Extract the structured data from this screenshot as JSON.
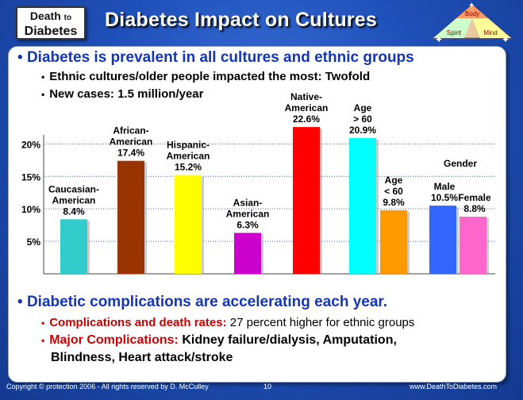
{
  "logo": {
    "line1a": "Death",
    "line1b": "to",
    "line2": "Diabetes"
  },
  "title": "Diabetes Impact on Cultures",
  "emblem": {
    "top": "Body",
    "left": "Spirit",
    "right": "Mind"
  },
  "bullet1": "Diabetes is prevalent in all cultures and ethnic groups",
  "sub1": "Ethnic cultures/older people impacted the most: Twofold",
  "sub2": "New cases: 1.5 million/year",
  "bullet2": "Diabetic complications are accelerating each year.",
  "comp1_red": "Complications and death rates:",
  "comp1_rest": " 27 percent higher for ethnic groups",
  "comp2_red": "Major Complications:",
  "comp2_rest": " Kidney failure/dialysis, Amputation,",
  "comp2_line2": "Blindness, Heart attack/stroke",
  "footer": {
    "left": "Copyright © protection 2006 - All rights reserved by D. McCulley",
    "page": "10",
    "right": "www.DeathToDiabetes.com"
  },
  "chart_data": {
    "type": "bar",
    "ylim": [
      0,
      20.9
    ],
    "yticks": [
      "20%",
      "15%",
      "10%",
      "5%"
    ],
    "ytick_values": [
      20,
      15,
      10,
      5
    ],
    "gender_label": "Gender",
    "bars": [
      {
        "label": [
          "Caucasian-",
          "American"
        ],
        "value_label": "8.4%",
        "value": 8.4,
        "color": "#33cccc"
      },
      {
        "label": [
          "African-",
          "American"
        ],
        "value_label": "17.4%",
        "value": 17.4,
        "color": "#993300"
      },
      {
        "label": [
          "Hispanic-",
          "American"
        ],
        "value_label": "15.2%",
        "value": 15.2,
        "color": "#ffff00"
      },
      {
        "label": [
          "Asian-",
          "American"
        ],
        "value_label": "6.3%",
        "value": 6.3,
        "color": "#cc00cc"
      },
      {
        "label": [
          "Native-",
          "American"
        ],
        "value_label": "22.6%",
        "value": 22.6,
        "color": "#ff0000"
      },
      {
        "label": [
          "Age",
          "> 60"
        ],
        "value_label": "20.9%",
        "value": 20.9,
        "color": "#00ffff"
      },
      {
        "label": [
          "Age",
          "< 60"
        ],
        "value_label": "9.8%",
        "value": 9.8,
        "color": "#ff9900"
      },
      {
        "label": [
          "Male"
        ],
        "value_label": "10.5%",
        "value": 10.5,
        "color": "#3366ff"
      },
      {
        "label": [
          "Female"
        ],
        "value_label": "8.8%",
        "value": 8.8,
        "color": "#ff66cc"
      }
    ]
  }
}
